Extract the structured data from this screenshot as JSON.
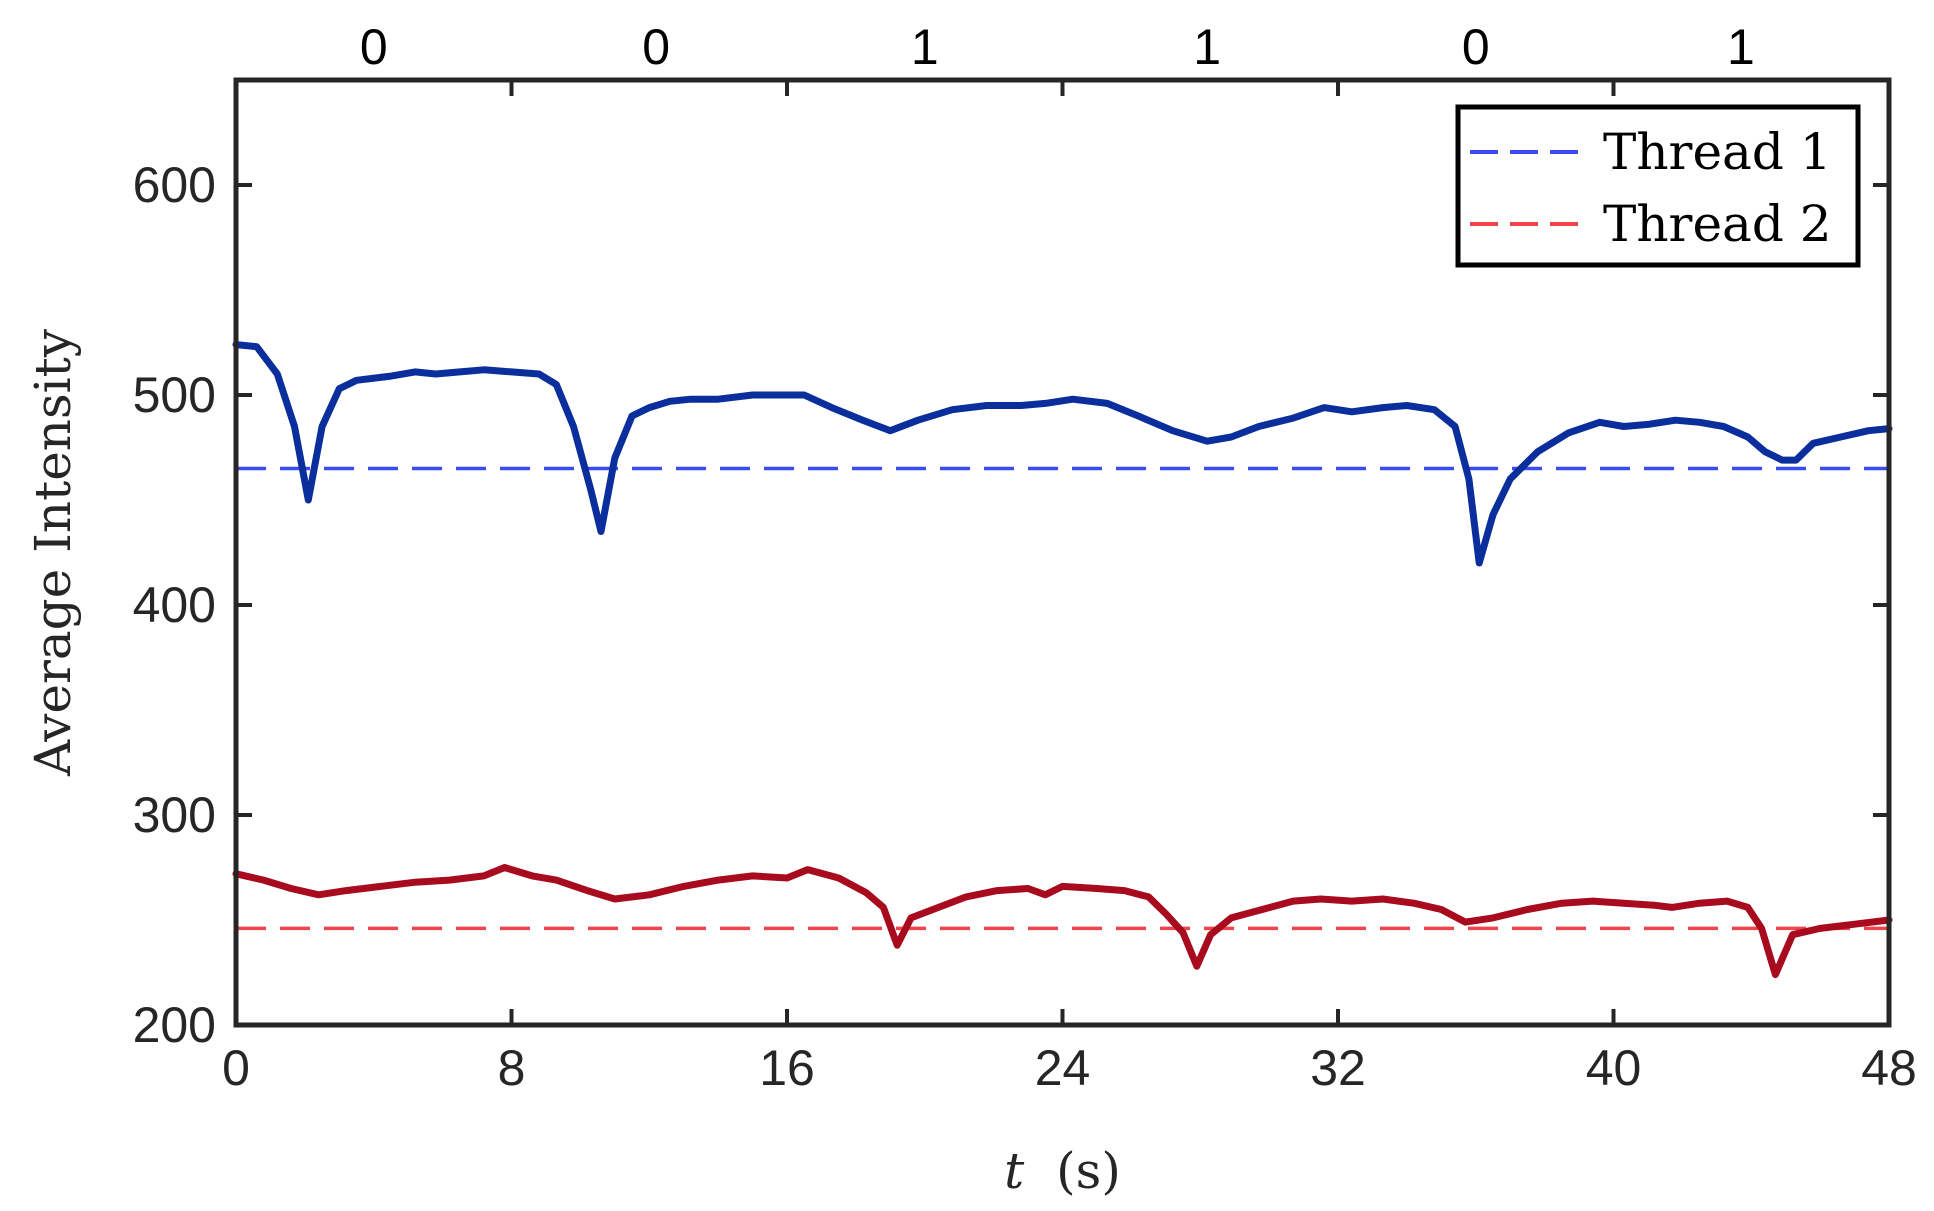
{
  "chart_data": {
    "type": "line",
    "xlabel_var": "t",
    "xlabel_unit": "(s)",
    "ylabel": "Average Intensity",
    "xlim": [
      0,
      48
    ],
    "ylim": [
      200,
      650
    ],
    "xticks": [
      0,
      8,
      16,
      24,
      32,
      40,
      48
    ],
    "yticks": [
      200,
      300,
      400,
      500,
      600
    ],
    "grid": false,
    "legend_position": "top-right",
    "top_bits": [
      {
        "x": 4,
        "label": "0"
      },
      {
        "x": 12.2,
        "label": "0"
      },
      {
        "x": 20,
        "label": "1"
      },
      {
        "x": 28.2,
        "label": "1"
      },
      {
        "x": 36,
        "label": "0"
      },
      {
        "x": 43.7,
        "label": "1"
      }
    ],
    "series": [
      {
        "name": "Thread 1",
        "color": "#0a2e9c",
        "style": "solid",
        "x": [
          0,
          0.6,
          1.2,
          1.7,
          2.1,
          2.5,
          3.0,
          3.5,
          4.5,
          5.2,
          5.8,
          6.5,
          7.2,
          8.0,
          8.8,
          9.3,
          9.8,
          10.3,
          10.6,
          11.0,
          11.5,
          12.0,
          12.6,
          13.2,
          14.0,
          15.0,
          16.0,
          16.5,
          17.3,
          18.2,
          19.0,
          19.8,
          20.8,
          21.8,
          22.8,
          23.5,
          24.3,
          25.3,
          26.2,
          27.2,
          28.2,
          28.9,
          29.7,
          30.7,
          31.6,
          32.4,
          33.3,
          34.0,
          34.8,
          35.4,
          35.8,
          36.1,
          36.5,
          37.0,
          37.8,
          38.7,
          39.6,
          40.3,
          41.0,
          41.8,
          42.5,
          43.2,
          43.9,
          44.4,
          44.9,
          45.3,
          45.8,
          46.6,
          47.4,
          48.0
        ],
        "y": [
          524,
          523,
          510,
          485,
          450,
          485,
          503,
          507,
          509,
          511,
          510,
          511,
          512,
          511,
          510,
          505,
          485,
          455,
          435,
          470,
          490,
          494,
          497,
          498,
          498,
          500,
          500,
          500,
          494,
          488,
          483,
          488,
          493,
          495,
          495,
          496,
          498,
          496,
          490,
          483,
          478,
          480,
          485,
          489,
          494,
          492,
          494,
          495,
          493,
          485,
          460,
          420,
          443,
          460,
          473,
          482,
          487,
          485,
          486,
          488,
          487,
          485,
          480,
          473,
          469,
          469,
          477,
          480,
          483,
          484
        ]
      },
      {
        "name": "Thread 2",
        "color": "#a80a1e",
        "style": "solid",
        "x": [
          0,
          0.8,
          1.6,
          2.4,
          3.2,
          4.2,
          5.2,
          6.2,
          7.2,
          7.8,
          8.6,
          9.3,
          10.2,
          11.0,
          12.0,
          13.0,
          14.0,
          15.0,
          16.0,
          16.6,
          17.5,
          18.3,
          18.8,
          19.2,
          19.6,
          20.4,
          21.2,
          22.1,
          23.0,
          23.5,
          24.0,
          25.0,
          25.8,
          26.5,
          27.0,
          27.5,
          27.9,
          28.3,
          28.9,
          29.8,
          30.7,
          31.5,
          32.4,
          33.3,
          34.2,
          35.0,
          35.7,
          36.5,
          37.5,
          38.5,
          39.4,
          40.3,
          41.2,
          41.7,
          42.5,
          43.3,
          43.9,
          44.3,
          44.7,
          45.2,
          46.0,
          47.0,
          48.0
        ],
        "y": [
          272,
          269,
          265,
          262,
          264,
          266,
          268,
          269,
          271,
          275,
          271,
          269,
          264,
          260,
          262,
          266,
          269,
          271,
          270,
          274,
          270,
          263,
          256,
          238,
          251,
          256,
          261,
          264,
          265,
          262,
          266,
          265,
          264,
          261,
          253,
          244,
          228,
          243,
          251,
          255,
          259,
          260,
          259,
          260,
          258,
          255,
          249,
          251,
          255,
          258,
          259,
          258,
          257,
          256,
          258,
          259,
          256,
          246,
          224,
          243,
          246,
          248,
          250
        ]
      },
      {
        "name": "Thread 1",
        "color": "#3b4cf0",
        "style": "dashed",
        "x": [
          0,
          48
        ],
        "y": [
          465,
          465
        ]
      },
      {
        "name": "Thread 2",
        "color": "#f0464b",
        "style": "dashed",
        "x": [
          0,
          48
        ],
        "y": [
          246,
          246
        ]
      }
    ]
  }
}
